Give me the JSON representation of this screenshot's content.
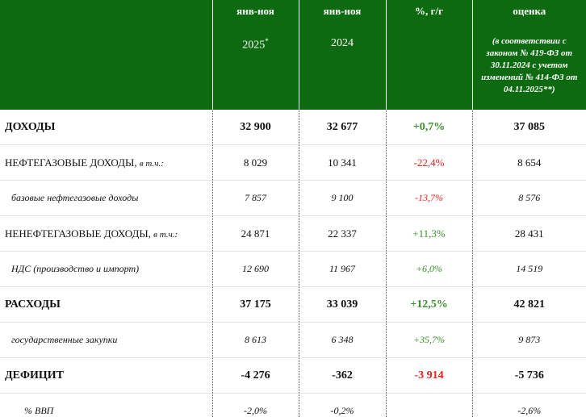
{
  "header": {
    "columns": [
      {
        "line1": "янв-ноя",
        "line2": "2025",
        "mark": "*"
      },
      {
        "line1": "янв-ноя",
        "line2": "2024"
      },
      {
        "line1": "%, г/г"
      },
      {
        "line1": "оценка",
        "line2": "(в соответствии с законом № 419-ФЗ от 30.11.2024 с учетом изменений № 414-ФЗ от 04.11.2025**)"
      }
    ]
  },
  "table": {
    "rows": [
      {
        "label": "ДОХОДЫ",
        "values": [
          "32 900",
          "32 677",
          "+0,7%",
          "37 085"
        ]
      },
      {
        "label": "НЕФТЕГАЗОВЫЕ ДОХОДЫ, ",
        "note": "в т.ч.:",
        "values": [
          "8 029",
          "10 341",
          "-22,4%",
          "8 654"
        ]
      },
      {
        "label": "базовые нефтегазовые доходы",
        "values": [
          "7 857",
          "9 100",
          "-13,7%",
          "8 576"
        ]
      },
      {
        "label": "НЕНЕФТЕГАЗОВЫЕ ДОХОДЫ, ",
        "note": "в т.ч.:",
        "values": [
          "24 871",
          "22 337",
          "+11,3%",
          "28 431"
        ]
      },
      {
        "label": "НДС (производство и импорт)",
        "values": [
          "12 690",
          "11 967",
          "+6,0%",
          "14 519"
        ]
      },
      {
        "label": "РАСХОДЫ",
        "values": [
          "37 175",
          "33 039",
          "+12,5%",
          "42 821"
        ]
      },
      {
        "label": "государственные закупки",
        "values": [
          "8 613",
          "6 348",
          "+35,7%",
          "9 873"
        ]
      },
      {
        "label": "ДЕФИЦИТ",
        "values": [
          "-4 276",
          "-362",
          "-3 914",
          "-5 736"
        ]
      },
      {
        "label": "% ВВП",
        "values": [
          "-2,0%",
          "-0,2%",
          null,
          "-2,6%"
        ]
      }
    ]
  }
}
